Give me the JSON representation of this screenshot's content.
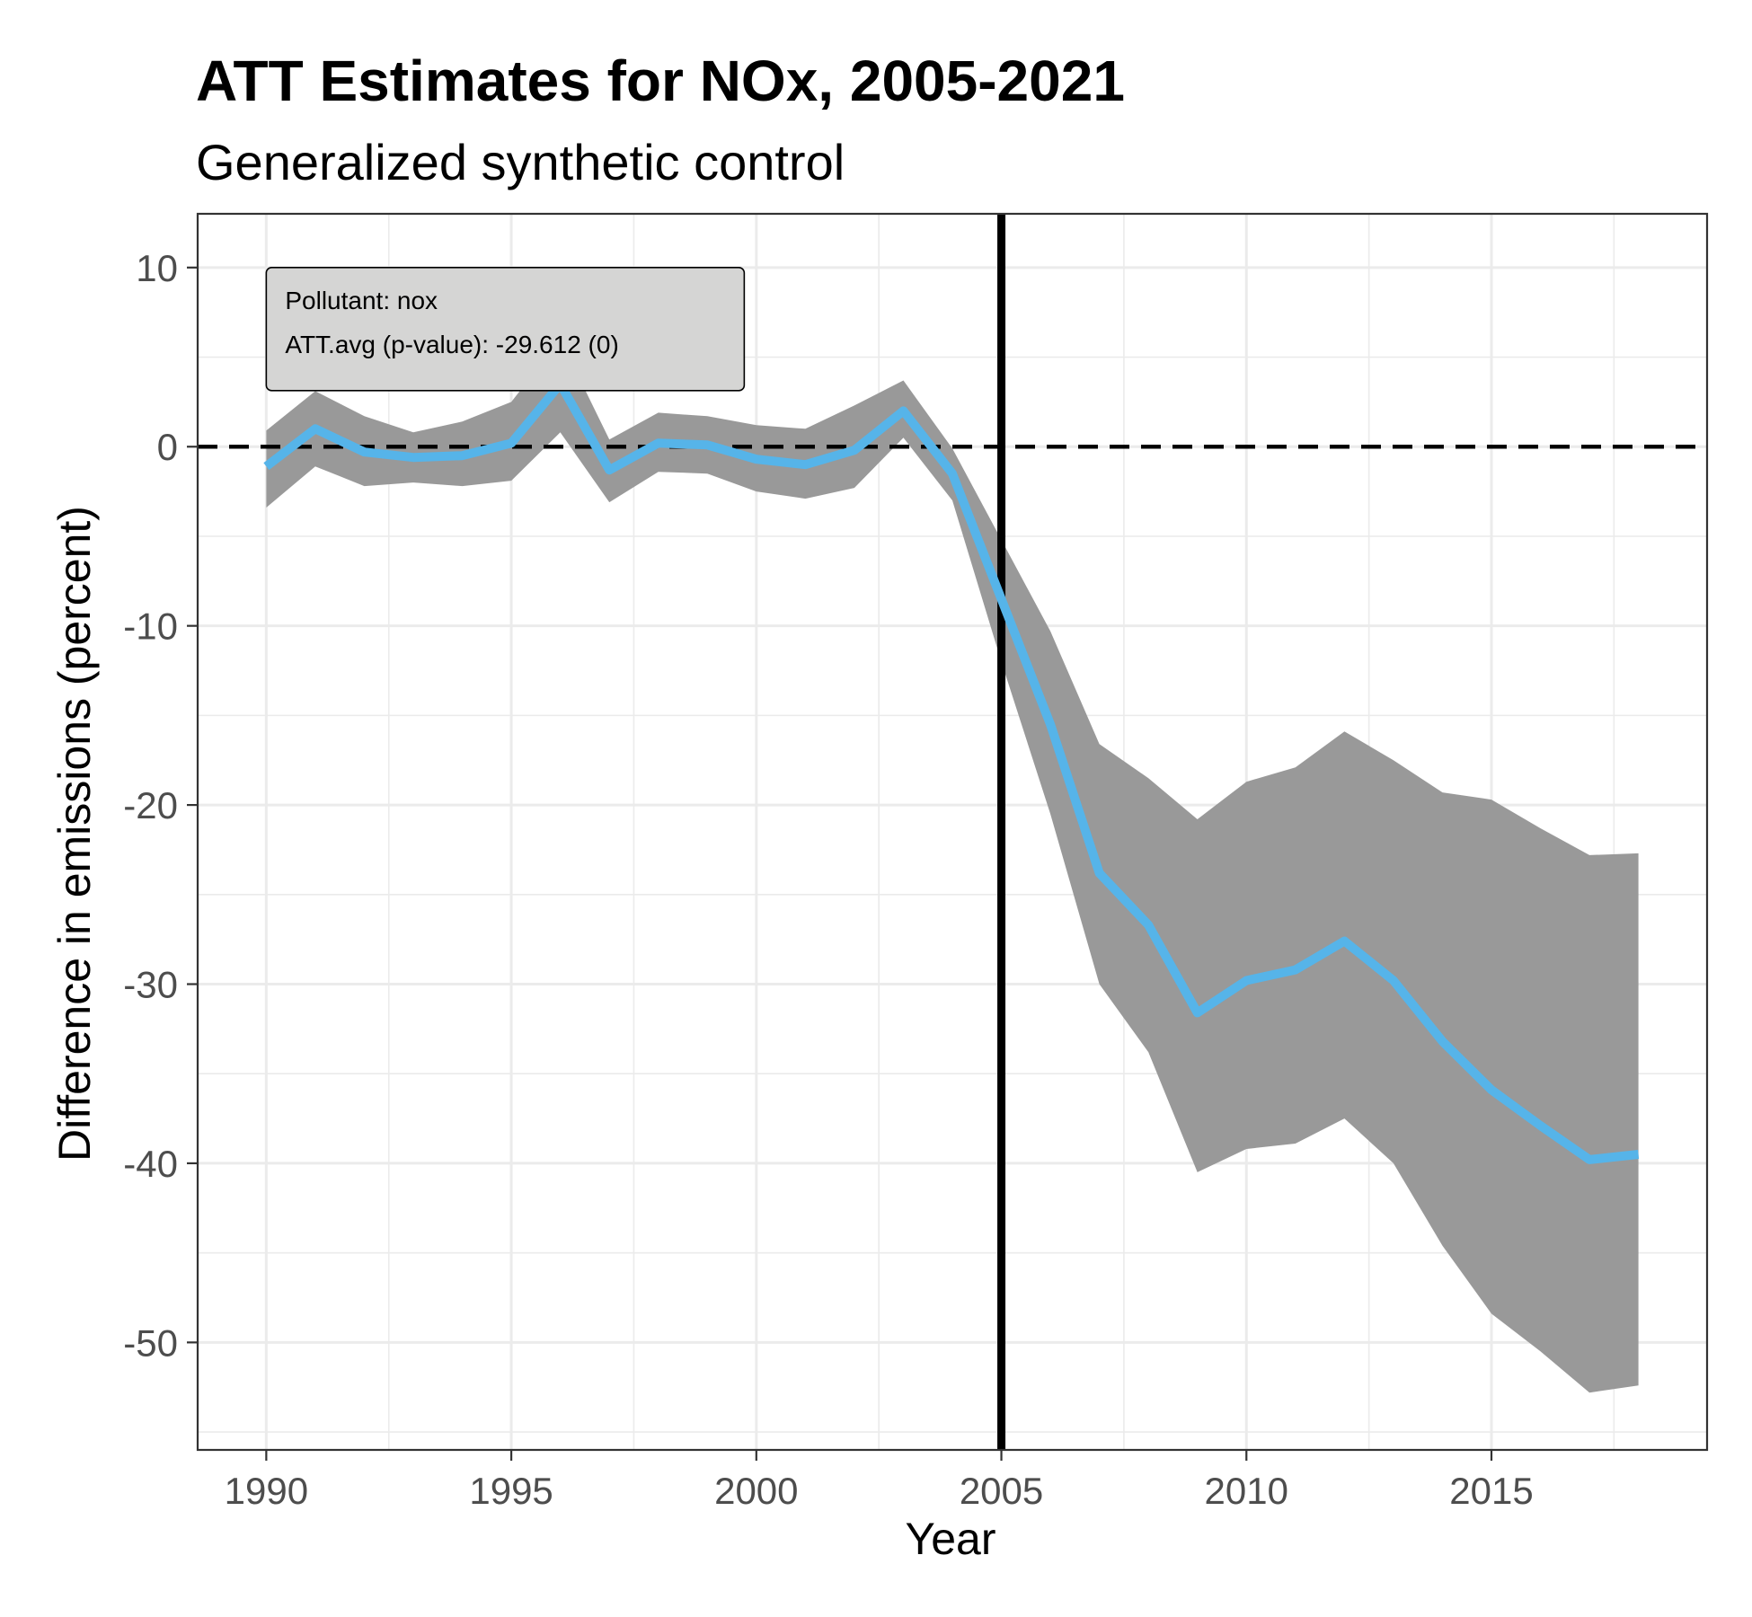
{
  "chart_data": {
    "type": "line",
    "title": "ATT Estimates for NOx, 2005-2021",
    "subtitle": "Generalized synthetic control",
    "xlabel": "Year",
    "ylabel": "Difference in emissions (percent)",
    "xlim": [
      1988.6,
      2019.4
    ],
    "ylim": [
      -56,
      13
    ],
    "x_ticks": [
      1990,
      1995,
      2000,
      2005,
      2010,
      2015
    ],
    "y_ticks": [
      10,
      0,
      -10,
      -20,
      -30,
      -40,
      -50
    ],
    "grid": true,
    "treatment_year": 2005,
    "zero_reference_line": 0,
    "x": [
      1990,
      1991,
      1992,
      1993,
      1994,
      1995,
      1996,
      1997,
      1998,
      1999,
      2000,
      2001,
      2002,
      2003,
      2004,
      2005,
      2006,
      2007,
      2008,
      2009,
      2010,
      2011,
      2012,
      2013,
      2014,
      2015,
      2016,
      2017,
      2018
    ],
    "series": [
      {
        "type": "line",
        "color": "#56B4E9",
        "values": [
          -1.1,
          1.0,
          -0.3,
          -0.6,
          -0.5,
          0.2,
          3.5,
          -1.3,
          0.2,
          0.1,
          -0.7,
          -1.0,
          -0.2,
          2.0,
          -1.5,
          -8.5,
          -15.5,
          -23.8,
          -26.7,
          -31.6,
          -29.8,
          -29.2,
          -27.6,
          -29.8,
          -33.2,
          -35.9,
          -37.9,
          -39.8,
          -39.5
        ]
      },
      {
        "type": "ribbon",
        "color": "#999999",
        "lower": [
          -3.4,
          -1.1,
          -2.2,
          -2.0,
          -2.2,
          -1.9,
          0.8,
          -3.1,
          -1.4,
          -1.5,
          -2.5,
          -2.9,
          -2.3,
          0.5,
          -3.0,
          -12.0,
          -20.5,
          -30.0,
          -33.8,
          -40.5,
          -39.2,
          -38.9,
          -37.5,
          -40.0,
          -44.6,
          -48.4,
          -50.5,
          -52.8,
          -52.4
        ],
        "upper": [
          0.9,
          3.1,
          1.7,
          0.8,
          1.4,
          2.5,
          6.0,
          0.4,
          1.9,
          1.7,
          1.2,
          1.0,
          2.3,
          3.7,
          -0.1,
          -5.2,
          -10.3,
          -16.6,
          -18.5,
          -20.8,
          -18.7,
          -17.9,
          -15.9,
          -17.5,
          -19.3,
          -19.7,
          -21.3,
          -22.8,
          -22.7
        ]
      }
    ],
    "annotation": {
      "line1": "Pollutant: nox",
      "line2": "ATT.avg (p-value): -29.612 (0)",
      "fill": "#d5d5d4"
    },
    "colors": {
      "panel_border": "#333333",
      "grid": "#ebebeb",
      "tick_label": "#4d4d4d"
    }
  }
}
